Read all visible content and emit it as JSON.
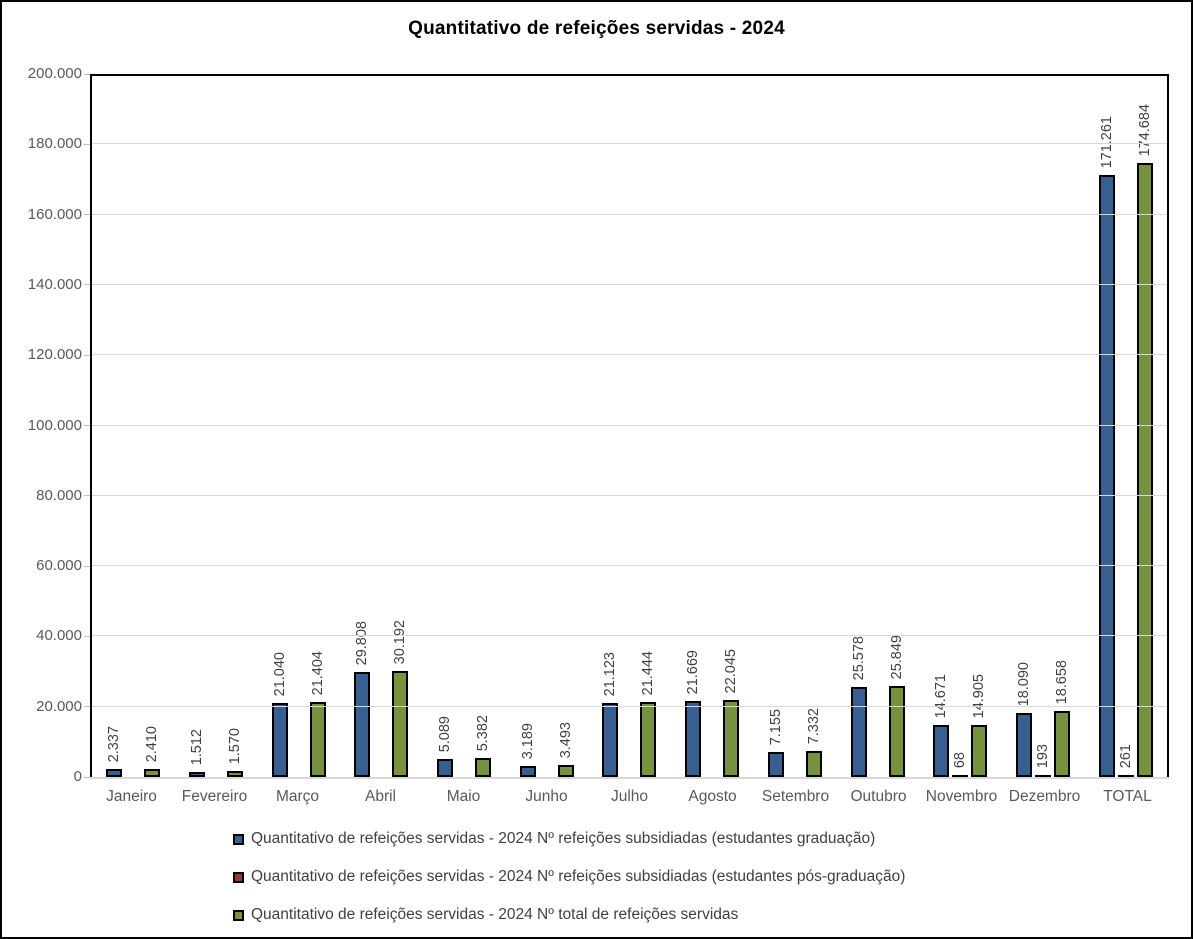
{
  "title": "Quantitativo de refeições servidas - 2024",
  "colors": {
    "series_graduacao": "#366092",
    "series_pos_graduacao": "#953735",
    "series_total": "#76923C",
    "bar_border": "#000000",
    "gridline": "#d9d9d9",
    "axis_text": "#595959",
    "data_label_text": "#404040"
  },
  "chart_data": {
    "type": "bar",
    "title": "Quantitativo de refeições servidas - 2024",
    "categories": [
      "Janeiro",
      "Fevereiro",
      "Março",
      "Abril",
      "Maio",
      "Junho",
      "Julho",
      "Agosto",
      "Setembro",
      "Outubro",
      "Novembro",
      "Dezembro",
      "TOTAL"
    ],
    "series": [
      {
        "name": "Quantitativo de refeições servidas - 2024 Nº refeições subsidiadas (estudantes graduação)",
        "color": "#366092",
        "values": [
          2337,
          1512,
          21040,
          29808,
          5089,
          3189,
          21123,
          21669,
          7155,
          25578,
          14671,
          18090,
          171261
        ],
        "labels": [
          "2.337",
          "1.512",
          "21.040",
          "29.808",
          "5.089",
          "3.189",
          "21.123",
          "21.669",
          "7.155",
          "25.578",
          "14.671",
          "18.090",
          "171.261"
        ]
      },
      {
        "name": "Quantitativo de refeições servidas - 2024 Nº refeições subsidiadas (estudantes pós-graduação)",
        "color": "#953735",
        "values": [
          0,
          0,
          0,
          0,
          0,
          0,
          0,
          0,
          0,
          0,
          68,
          193,
          261
        ],
        "labels": [
          "",
          "",
          "",
          "",
          "",
          "",
          "",
          "",
          "",
          "",
          "68",
          "193",
          "261"
        ]
      },
      {
        "name": "Quantitativo de refeições servidas - 2024 Nº total de refeições servidas",
        "color": "#76923C",
        "values": [
          2410,
          1570,
          21404,
          30192,
          5382,
          3493,
          21444,
          22045,
          7332,
          25849,
          14905,
          18658,
          174684
        ],
        "labels": [
          "2.410",
          "1.570",
          "21.404",
          "30.192",
          "5.382",
          "3.493",
          "21.444",
          "22.045",
          "7.332",
          "25.849",
          "14.905",
          "18.658",
          "174.684"
        ]
      }
    ],
    "ylim": [
      0,
      200000
    ],
    "ytick_step": 20000,
    "ytick_labels": [
      "0",
      "20.000",
      "40.000",
      "60.000",
      "80.000",
      "100.000",
      "120.000",
      "140.000",
      "160.000",
      "180.000",
      "200.000"
    ],
    "grid": true,
    "legend_position": "bottom-left"
  }
}
